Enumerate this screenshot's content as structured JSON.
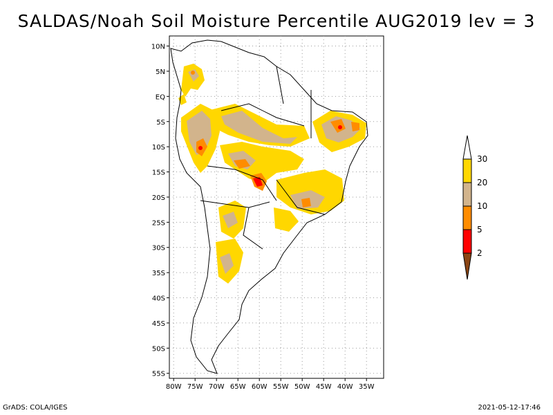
{
  "title": "SALDAS/Noah Soil Moisture Percentile AUG2019 lev = 3",
  "lat_ticks": [
    "10N",
    "5N",
    "EQ",
    "5S",
    "10S",
    "15S",
    "20S",
    "25S",
    "30S",
    "35S",
    "40S",
    "45S",
    "50S",
    "55S"
  ],
  "lon_ticks": [
    "80W",
    "75W",
    "70W",
    "65W",
    "60W",
    "55W",
    "50W",
    "45W",
    "40W",
    "35W"
  ],
  "colorbar": {
    "labels": [
      "2",
      "5",
      "10",
      "20",
      "30"
    ],
    "colors": [
      "#8b4513",
      "#ff0000",
      "#ff8c00",
      "#d2b48c",
      "#ffd700",
      "#ffffff"
    ]
  },
  "colors": {
    "dry_30": "#ffd700",
    "dry_20": "#d2b48c",
    "dry_10": "#ff8c00",
    "dry_5": "#ff0000",
    "dry_2": "#8b4513"
  },
  "footer_left": "GrADS: COLA/IGES",
  "footer_right": "2021-05-12-17:46"
}
